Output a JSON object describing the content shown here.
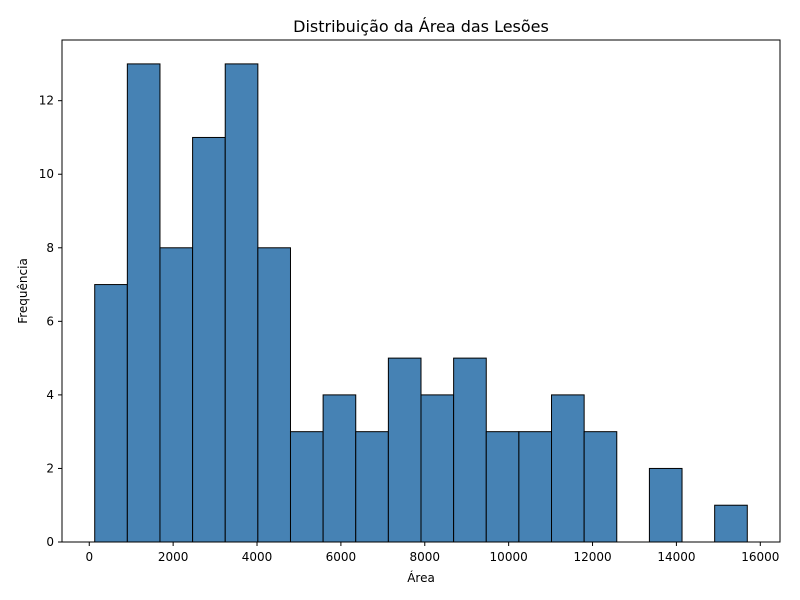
{
  "chart_data": {
    "type": "bar",
    "title": "Distribuição da Área das Lesões",
    "xlabel": "Área",
    "ylabel": "Frequência",
    "bins": [
      {
        "start": 130,
        "end": 908,
        "count": 7
      },
      {
        "start": 908,
        "end": 1686,
        "count": 13
      },
      {
        "start": 1686,
        "end": 2464,
        "count": 8
      },
      {
        "start": 2464,
        "end": 3242,
        "count": 11
      },
      {
        "start": 3242,
        "end": 4020,
        "count": 13
      },
      {
        "start": 4020,
        "end": 4798,
        "count": 8
      },
      {
        "start": 4798,
        "end": 5576,
        "count": 3
      },
      {
        "start": 5576,
        "end": 6354,
        "count": 4
      },
      {
        "start": 6354,
        "end": 7132,
        "count": 3
      },
      {
        "start": 7132,
        "end": 7910,
        "count": 5
      },
      {
        "start": 7910,
        "end": 8688,
        "count": 4
      },
      {
        "start": 8688,
        "end": 9466,
        "count": 5
      },
      {
        "start": 9466,
        "end": 10244,
        "count": 3
      },
      {
        "start": 10244,
        "end": 11022,
        "count": 3
      },
      {
        "start": 11022,
        "end": 11800,
        "count": 4
      },
      {
        "start": 11800,
        "end": 12578,
        "count": 3
      },
      {
        "start": 12578,
        "end": 13356,
        "count": 0
      },
      {
        "start": 13356,
        "end": 14134,
        "count": 2
      },
      {
        "start": 14134,
        "end": 14912,
        "count": 0
      },
      {
        "start": 14912,
        "end": 15690,
        "count": 1
      }
    ],
    "xlim": [
      -650,
      16470
    ],
    "ylim": [
      0,
      13.65
    ],
    "xticks": [
      0,
      2000,
      4000,
      6000,
      8000,
      10000,
      12000,
      14000,
      16000
    ],
    "yticks": [
      0,
      2,
      4,
      6,
      8,
      10,
      12
    ],
    "bar_color": "#4682b4",
    "edge_color": "#000000",
    "grid": false,
    "legend": "none"
  }
}
